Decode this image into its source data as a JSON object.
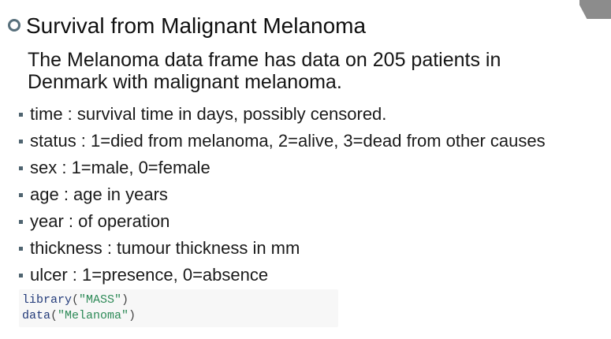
{
  "slide": {
    "title": "Survival from Malignant Melanoma",
    "intro": "The Melanoma data frame has data on 205 patients in Denmark with malignant melanoma.",
    "variables": [
      "time : survival time in days, possibly censored.",
      "status : 1=died from melanoma, 2=alive, 3=dead from other causes",
      "sex : 1=male, 0=female",
      "age : age in years",
      "year : of operation",
      "thickness : tumour thickness in mm",
      "ulcer : 1=presence, 0=absence"
    ]
  },
  "code": {
    "line1": {
      "fn": "library",
      "open": "(",
      "arg": "\"MASS\"",
      "close": ")"
    },
    "line2": {
      "fn": "data",
      "open": "(",
      "arg": "\"Melanoma\"",
      "close": ")"
    }
  },
  "colors": {
    "bullet": "#58707c",
    "code_background": "#f7f7f7",
    "code_function": "#223a79",
    "code_string": "#2d8a57",
    "corner_shape": "#8c8c8c"
  },
  "icons": {
    "title_bullet": "ring-bullet-icon",
    "list_bullet": "square-bullet-icon"
  }
}
